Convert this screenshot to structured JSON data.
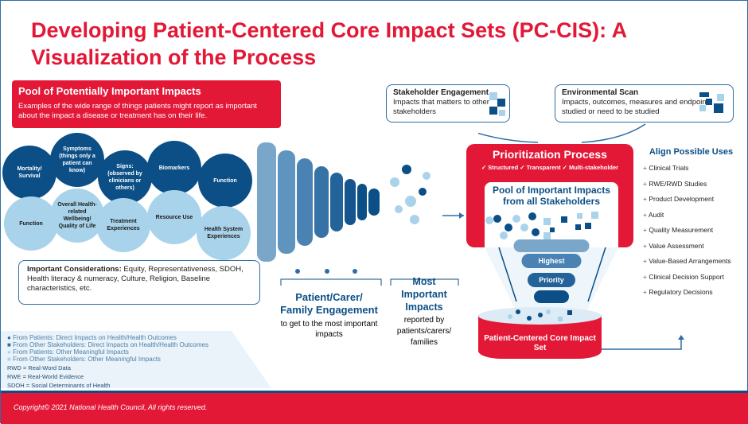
{
  "title": "Developing Patient-Centered Core Impact Sets (PC-CIS): A Visualization of the Process",
  "pool": {
    "heading": "Pool of Potentially Important Impacts",
    "text": "Examples of the wide range of things patients might  report as important about  the impact a disease or  treatment has on their life."
  },
  "impacts_dark": [
    "Mortality/ Survival",
    "Symptoms (things only a patient can know)",
    "Signs: (observed by clinicians or others)",
    "Biomarkers",
    "Function"
  ],
  "impacts_light": [
    "Function",
    "Overall Health-related Wellbeing/ Quality of Life",
    "Treatment Experiences",
    "Resource Use",
    "Health System Experiences"
  ],
  "considerations": {
    "label": "Important Considerations:",
    "text": " Equity, Representativeness, SDOH, Health literacy & numeracy, Culture,  Religion, Baseline characteristics, etc."
  },
  "legend": [
    "From Patients: Direct Impacts on Health/Health Outcomes",
    "From Other Stakeholders: Direct Impacts on Health/Health Outcomes",
    "From Patients: Other Meaningful Impacts",
    "From Other Stakeholders: Other Meaningful Impacts"
  ],
  "abbreviations": [
    "RWD = Real-Word Data",
    "RWE = Real-World Evidence",
    "SDOH = Social Determinants of Health"
  ],
  "engagement": {
    "heading": "Patient/Carer/ Family Engagement",
    "text": "to get to the most important impacts"
  },
  "most": {
    "heading": "Most Important Impacts",
    "text": "reported by patients/carers/ families"
  },
  "stakeholder": {
    "heading": "Stakeholder Engagement",
    "text": "Impacts that matters to other stakeholders"
  },
  "envscan": {
    "heading": "Environmental Scan",
    "text": "Impacts, outcomes, measures and endpoints studied or need to be studied"
  },
  "prioritization": {
    "heading": "Prioritization Process",
    "checks": "✓ Structured  ✓ Transparent  ✓ Multi-stakeholder",
    "pool": "Pool of Important Impacts from all Stakeholders",
    "highest": "Highest",
    "priority": "Priority",
    "result": "Patient-Centered Core Impact Set"
  },
  "uses": {
    "heading": "Align Possible Uses",
    "items": [
      "Clinical Trials",
      "RWE/RWD Studies",
      "Product Development",
      "Audit",
      "Quality Measurement",
      "Value Assessment",
      "Value-Based Arrangements",
      "Clinical Decision Support",
      "Regulatory Decisions"
    ]
  },
  "footer": "Copyright© 2021 National Health Council, All rights reserved.",
  "colors": {
    "red": "#e31837",
    "dark_blue": "#0b4f86",
    "light_blue": "#a9d3ea"
  }
}
